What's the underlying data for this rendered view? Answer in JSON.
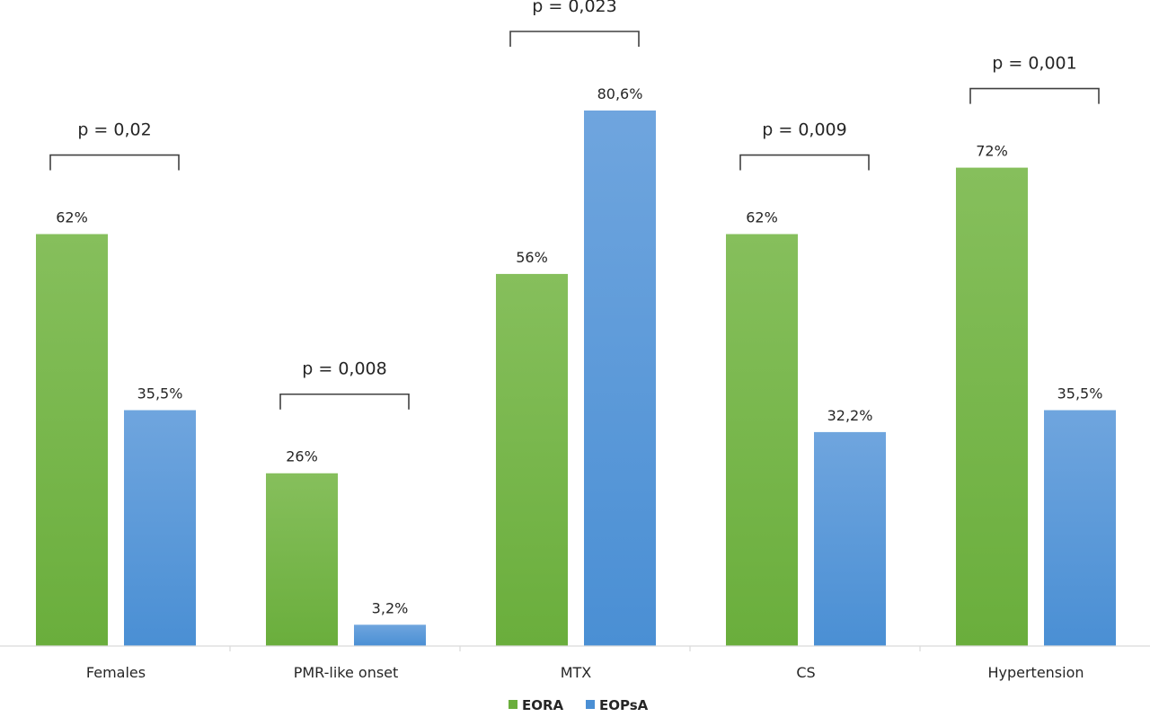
{
  "chart_data": {
    "type": "bar",
    "categories": [
      "Females",
      "PMR-like onset",
      "MTX",
      "CS",
      "Hypertension"
    ],
    "series": [
      {
        "name": "EORA",
        "values": [
          62,
          26,
          56,
          62,
          72
        ],
        "labels": [
          "62%",
          "26%",
          "56%",
          "62%",
          "72%"
        ],
        "color": "#6aae3c",
        "color_light": "#86bf5c"
      },
      {
        "name": "EOPsA",
        "values": [
          35.5,
          3.2,
          80.6,
          32.2,
          35.5
        ],
        "labels": [
          "35,5%",
          "3,2%",
          "80,6%",
          "32,2%",
          "35,5%"
        ],
        "color": "#4a8fd4",
        "color_light": "#6fa5de"
      }
    ],
    "annotations": [
      {
        "category": "Females",
        "text": "p = 0,02"
      },
      {
        "category": "PMR-like onset",
        "text": "p = 0,008"
      },
      {
        "category": "MTX",
        "text": "p = 0,023"
      },
      {
        "category": "CS",
        "text": "p = 0,009"
      },
      {
        "category": "Hypertension",
        "text": "p = 0,001"
      }
    ],
    "ylim": [
      0,
      100
    ],
    "grid": false,
    "legend_position": "bottom-center"
  }
}
